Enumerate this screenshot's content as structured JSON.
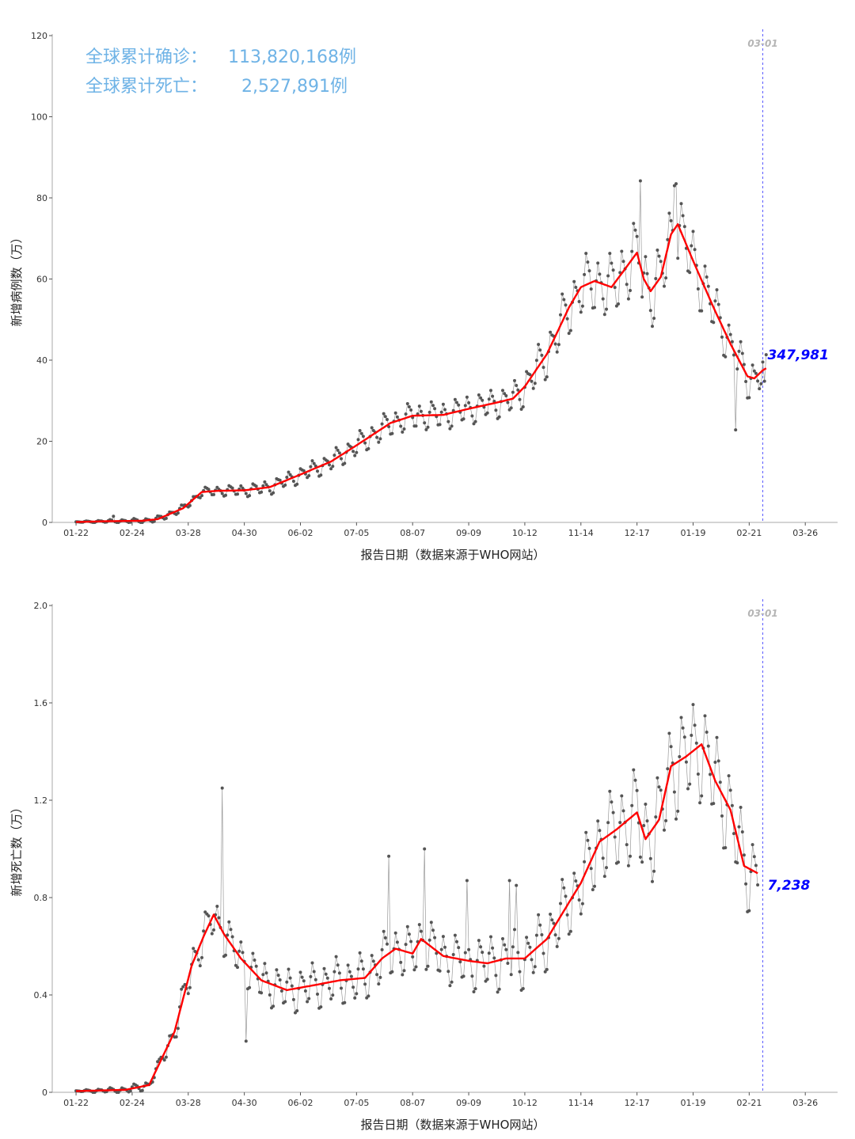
{
  "summary": {
    "confirmed_label": "全球累计确诊：",
    "confirmed_value": "113,820,168例",
    "deaths_label": "全球累计死亡：",
    "deaths_value": "2,527,891例"
  },
  "colors": {
    "points": "#555555",
    "raw_line": "#9a9a9a",
    "smooth_line": "#ff0000",
    "marker_line": "#5b5bff",
    "marker_label": "#b5b5b5",
    "last_value": "#0000ff",
    "summary_text": "#6fb3e6",
    "axis": "#333333"
  },
  "chart_data": [
    {
      "type": "line",
      "xlabel": "报告日期（数据来源于WHO网站）",
      "ylabel": "新增病例数（万）",
      "ylim": [
        0,
        120
      ],
      "yticks": [
        0,
        20,
        40,
        60,
        80,
        100,
        120
      ],
      "xlim": [
        "2020-01-08",
        "2021-04-14"
      ],
      "xticks": [
        "01-22",
        "02-24",
        "03-28",
        "04-30",
        "06-02",
        "07-05",
        "08-07",
        "09-09",
        "10-12",
        "11-14",
        "12-17",
        "01-19",
        "02-21",
        "03-26"
      ],
      "xtick_dates": [
        "2020-01-22",
        "2020-02-24",
        "2020-03-28",
        "2020-04-30",
        "2020-06-02",
        "2020-07-05",
        "2020-08-07",
        "2020-09-09",
        "2020-10-12",
        "2020-11-14",
        "2020-12-17",
        "2021-01-19",
        "2021-02-21",
        "2021-03-26"
      ],
      "marker": {
        "date": "2021-03-01",
        "label": "03-01"
      },
      "last_value_label": "347,981",
      "daily_start": "2020-01-22",
      "smooth_anchors": [
        [
          "2020-01-22",
          0.1
        ],
        [
          "2020-02-10",
          0.3
        ],
        [
          "2020-03-01",
          0.4
        ],
        [
          "2020-03-10",
          0.8
        ],
        [
          "2020-03-25",
          3.5
        ],
        [
          "2020-04-05",
          7.5
        ],
        [
          "2020-04-15",
          7.8
        ],
        [
          "2020-04-30",
          7.9
        ],
        [
          "2020-05-15",
          8.7
        ],
        [
          "2020-06-02",
          11.8
        ],
        [
          "2020-06-20",
          15.0
        ],
        [
          "2020-07-05",
          19.0
        ],
        [
          "2020-07-25",
          24.5
        ],
        [
          "2020-08-07",
          26.3
        ],
        [
          "2020-08-25",
          26.5
        ],
        [
          "2020-09-09",
          28.0
        ],
        [
          "2020-09-25",
          29.5
        ],
        [
          "2020-10-05",
          30.5
        ],
        [
          "2020-10-12",
          33.5
        ],
        [
          "2020-10-25",
          41.5
        ],
        [
          "2020-11-07",
          53.0
        ],
        [
          "2020-11-14",
          58.0
        ],
        [
          "2020-11-22",
          59.5
        ],
        [
          "2020-12-02",
          58.0
        ],
        [
          "2020-12-10",
          62.5
        ],
        [
          "2020-12-17",
          66.5
        ],
        [
          "2020-12-21",
          60.0
        ],
        [
          "2020-12-25",
          57.0
        ],
        [
          "2020-12-31",
          60.5
        ],
        [
          "2021-01-06",
          71.0
        ],
        [
          "2021-01-10",
          73.5
        ],
        [
          "2021-01-19",
          64.5
        ],
        [
          "2021-01-31",
          53.0
        ],
        [
          "2021-02-10",
          44.0
        ],
        [
          "2021-02-20",
          36.0
        ],
        [
          "2021-02-24",
          35.5
        ],
        [
          "2021-03-01",
          37.5
        ],
        [
          "2021-03-03",
          38.0
        ]
      ],
      "amplitude_anchors": [
        [
          "2020-01-22",
          0.1
        ],
        [
          "2020-03-20",
          0.8
        ],
        [
          "2020-04-20",
          1.2
        ],
        [
          "2020-06-10",
          2.0
        ],
        [
          "2020-07-20",
          3.0
        ],
        [
          "2020-08-20",
          3.2
        ],
        [
          "2020-10-01",
          3.4
        ],
        [
          "2020-11-10",
          6.5
        ],
        [
          "2020-12-17",
          8.0
        ],
        [
          "2021-01-15",
          8.0
        ],
        [
          "2021-02-10",
          5.0
        ],
        [
          "2021-03-03",
          4.5
        ]
      ],
      "daily_overrides": [
        [
          "2020-02-13",
          1.5
        ],
        [
          "2020-12-19",
          84.2
        ],
        [
          "2021-01-08",
          83.0
        ],
        [
          "2021-01-09",
          83.5
        ],
        [
          "2021-02-13",
          22.8
        ],
        [
          "2021-03-02",
          34.8
        ]
      ]
    },
    {
      "type": "line",
      "xlabel": "报告日期（数据来源于WHO网站）",
      "ylabel": "新增死亡数（万）",
      "ylim": [
        0,
        2
      ],
      "yticks": [
        0,
        0.4,
        0.8,
        1.2,
        1.6,
        2.0
      ],
      "ytick_labels": [
        "0",
        "0.4",
        "0.8",
        "1.2",
        "1.6",
        "2.0"
      ],
      "xlim": [
        "2020-01-08",
        "2021-04-14"
      ],
      "xticks": [
        "01-22",
        "02-24",
        "03-28",
        "04-30",
        "06-02",
        "07-05",
        "08-07",
        "09-09",
        "10-12",
        "11-14",
        "12-17",
        "01-19",
        "02-21",
        "03-26"
      ],
      "xtick_dates": [
        "2020-01-22",
        "2020-02-24",
        "2020-03-28",
        "2020-04-30",
        "2020-06-02",
        "2020-07-05",
        "2020-08-07",
        "2020-09-09",
        "2020-10-12",
        "2020-11-14",
        "2020-12-17",
        "2021-01-19",
        "2021-02-21",
        "2021-03-26"
      ],
      "marker": {
        "date": "2021-03-01",
        "label": "03-01"
      },
      "last_value_label": "7,238",
      "daily_start": "2020-01-22",
      "smooth_anchors": [
        [
          "2020-01-22",
          0.005
        ],
        [
          "2020-02-20",
          0.01
        ],
        [
          "2020-03-05",
          0.03
        ],
        [
          "2020-03-20",
          0.25
        ],
        [
          "2020-03-30",
          0.52
        ],
        [
          "2020-04-06",
          0.64
        ],
        [
          "2020-04-12",
          0.73
        ],
        [
          "2020-04-18",
          0.65
        ],
        [
          "2020-04-28",
          0.55
        ],
        [
          "2020-05-10",
          0.46
        ],
        [
          "2020-05-25",
          0.42
        ],
        [
          "2020-06-10",
          0.44
        ],
        [
          "2020-06-25",
          0.46
        ],
        [
          "2020-07-10",
          0.47
        ],
        [
          "2020-07-20",
          0.55
        ],
        [
          "2020-07-28",
          0.59
        ],
        [
          "2020-08-07",
          0.57
        ],
        [
          "2020-08-12",
          0.63
        ],
        [
          "2020-08-25",
          0.56
        ],
        [
          "2020-09-09",
          0.54
        ],
        [
          "2020-09-20",
          0.53
        ],
        [
          "2020-10-01",
          0.55
        ],
        [
          "2020-10-12",
          0.55
        ],
        [
          "2020-10-25",
          0.63
        ],
        [
          "2020-11-07",
          0.78
        ],
        [
          "2020-11-14",
          0.86
        ],
        [
          "2020-11-25",
          1.03
        ],
        [
          "2020-12-05",
          1.08
        ],
        [
          "2020-12-17",
          1.15
        ],
        [
          "2020-12-22",
          1.04
        ],
        [
          "2020-12-30",
          1.12
        ],
        [
          "2021-01-06",
          1.34
        ],
        [
          "2021-01-15",
          1.38
        ],
        [
          "2021-01-24",
          1.43
        ],
        [
          "2021-02-01",
          1.28
        ],
        [
          "2021-02-10",
          1.16
        ],
        [
          "2021-02-18",
          0.93
        ],
        [
          "2021-02-26",
          0.9
        ]
      ],
      "amplitude_anchors": [
        [
          "2020-01-22",
          0.002
        ],
        [
          "2020-03-10",
          0.02
        ],
        [
          "2020-04-01",
          0.08
        ],
        [
          "2020-05-10",
          0.08
        ],
        [
          "2020-07-01",
          0.09
        ],
        [
          "2020-09-01",
          0.1
        ],
        [
          "2020-11-01",
          0.12
        ],
        [
          "2020-12-17",
          0.18
        ],
        [
          "2021-01-20",
          0.2
        ],
        [
          "2021-03-01",
          0.15
        ]
      ],
      "daily_overrides": [
        [
          "2020-04-17",
          1.25
        ],
        [
          "2020-05-01",
          0.21
        ],
        [
          "2020-07-24",
          0.97
        ],
        [
          "2020-08-14",
          1.0
        ],
        [
          "2020-09-08",
          0.87
        ],
        [
          "2020-10-03",
          0.87
        ],
        [
          "2020-10-07",
          0.85
        ],
        [
          "2021-02-28",
          0.72
        ]
      ]
    }
  ]
}
